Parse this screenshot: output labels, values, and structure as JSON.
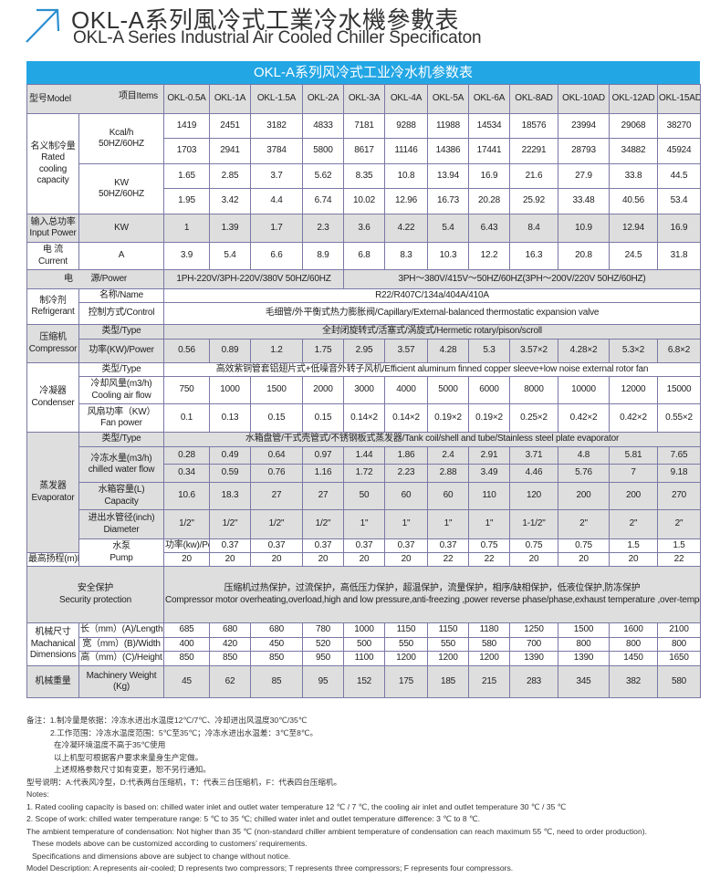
{
  "title_cn": "OKL-A系列風冷式工業冷水機參數表",
  "title_en": "OKL-A Series Industrial Air Cooled Chiller Specificaton",
  "table_title": "OKL-A系列风冷式工业冷水机参数表",
  "icon": "arrow-up-right-icon",
  "colors": {
    "accent": "#22a6e4",
    "grey_row": "#dedede",
    "border": "#7a78a4"
  },
  "header": {
    "model_label": "型号Model",
    "items_label": "项目Items",
    "models": [
      "OKL-0.5A",
      "OKL-1A",
      "OKL-1.5A",
      "OKL-2A",
      "OKL-3A",
      "OKL-4A",
      "OKL-5A",
      "OKL-6A",
      "OKL-8AD",
      "OKL-10AD",
      "OKL-12AD",
      "OKL-15AD"
    ]
  },
  "cooling": {
    "label_cn": "名义制冷量",
    "label_en": "Rated cooling capacity",
    "kcal_label": "Kcal/h",
    "kcal_sub": "50HZ/60HZ",
    "kcal_50": [
      "1419",
      "2451",
      "3182",
      "4833",
      "7181",
      "9288",
      "11988",
      "14534",
      "18576",
      "23994",
      "29068",
      "38270"
    ],
    "kcal_60": [
      "1703",
      "2941",
      "3784",
      "5800",
      "8617",
      "11146",
      "14386",
      "17441",
      "22291",
      "28793",
      "34882",
      "45924"
    ],
    "kw_label": "KW",
    "kw_sub": "50HZ/60HZ",
    "kw_50": [
      "1.65",
      "2.85",
      "3.7",
      "5.62",
      "8.35",
      "10.8",
      "13.94",
      "16.9",
      "21.6",
      "27.9",
      "33.8",
      "44.5"
    ],
    "kw_60": [
      "1.95",
      "3.42",
      "4.4",
      "6.74",
      "10.02",
      "12.96",
      "16.73",
      "20.28",
      "25.92",
      "33.48",
      "40.56",
      "53.4"
    ]
  },
  "input_power": {
    "label_cn": "输入总功率",
    "label_en": "Input Power",
    "unit": "KW",
    "values": [
      "1",
      "1.39",
      "1.7",
      "2.3",
      "3.6",
      "4.22",
      "5.4",
      "6.43",
      "8.4",
      "10.9",
      "12.94",
      "16.9"
    ]
  },
  "current": {
    "label_cn": "电 流",
    "label_en": "Current",
    "unit": "A",
    "values": [
      "3.9",
      "5.4",
      "6.6",
      "8.9",
      "6.8",
      "8.3",
      "10.3",
      "12.2",
      "16.3",
      "20.8",
      "24.5",
      "31.8"
    ]
  },
  "power": {
    "label": "电　　源/Power",
    "single": "1PH-220V/3PH-220V/380V 50HZ/60HZ",
    "three": "3PH～380V/415V～50HZ/60HZ(3PH～200V/220V   50HZ/60HZ)"
  },
  "refrigerant": {
    "label_cn": "制冷剂",
    "label_en": "Refrigerant",
    "name_label": "名称/Name",
    "name": "R22/R407C/134a/404A/410A",
    "control_label": "控制方式/Control",
    "control": "毛细管/外平衡式热力膨胀阀/Capillary/External-balanced thermostatic expansion valve"
  },
  "compressor": {
    "label_cn": "压缩机",
    "label_en": "Compressor",
    "type_label": "类型/Type",
    "type": "全封闭旋转式/活塞式/涡旋式/Hermetic rotary/pison/scroll",
    "power_label": "功率(KW)/Power",
    "power": [
      "0.56",
      "0.89",
      "1.2",
      "1.75",
      "2.95",
      "3.57",
      "4.28",
      "5.3",
      "3.57×2",
      "4.28×2",
      "5.3×2",
      "6.8×2"
    ]
  },
  "condenser": {
    "label_cn": "冷凝器",
    "label_en": "Condenser",
    "type_label": "类型/Type",
    "type": "高效紫铜管套铝翅片式+低噪音外转子风机/Efficient aluminum finned copper sleeve+low noise external rotor fan",
    "airflow_label_cn": "冷却风量(m3/h)",
    "airflow_label_en": "Cooling air flow",
    "airflow": [
      "750",
      "1000",
      "1500",
      "2000",
      "3000",
      "4000",
      "5000",
      "6000",
      "8000",
      "10000",
      "12000",
      "15000"
    ],
    "fan_label_cn": "风扇功率（KW）",
    "fan_label_en": "Fan power",
    "fan": [
      "0.1",
      "0.13",
      "0.15",
      "0.15",
      "0.14×2",
      "0.14×2",
      "0.19×2",
      "0.19×2",
      "0.25×2",
      "0.42×2",
      "0.42×2",
      "0.55×2"
    ]
  },
  "evaporator": {
    "label_cn": "蒸发器",
    "label_en": "Evaporator",
    "type_label": "类型/Type",
    "type": "水箱盘管/干式壳管式/不锈钢板式蒸发器/Tank coil/shell and tube/Stainless steel plate evaporator",
    "flow_label_cn": "冷冻水量(m3/h)",
    "flow_label_en": "chilled water flow",
    "flow_1": [
      "0.28",
      "0.49",
      "0.64",
      "0.97",
      "1.44",
      "1.86",
      "2.4",
      "2.91",
      "3.71",
      "4.8",
      "5.81",
      "7.65"
    ],
    "flow_2": [
      "0.34",
      "0.59",
      "0.76",
      "1.16",
      "1.72",
      "2.23",
      "2.88",
      "3.49",
      "4.46",
      "5.76",
      "7",
      "9.18"
    ],
    "capacity_label_cn": "水箱容量(L)",
    "capacity_label_en": "Capacity",
    "capacity": [
      "10.6",
      "18.3",
      "27",
      "27",
      "50",
      "60",
      "60",
      "110",
      "120",
      "200",
      "200",
      "270"
    ],
    "diameter_label_cn": "进出水管径(inch)",
    "diameter_label_en": "Diameter",
    "diameter": [
      "1/2\"",
      "1/2\"",
      "1/2\"",
      "1/2\"",
      "1\"",
      "1\"",
      "1\"",
      "1\"",
      "1-1/2\"",
      "2\"",
      "2\"",
      "2\""
    ]
  },
  "pump": {
    "label_cn": "水泵",
    "label_en": "Pump",
    "power_label": "功率(kw)/Power",
    "power": [
      "0.37",
      "0.37",
      "0.37",
      "0.37",
      "0.37",
      "0.37",
      "0.75",
      "0.75",
      "0.75",
      "1.5",
      "1.5",
      "2.2"
    ],
    "lift_label": "最高扬程(m)Max-lift",
    "lift": [
      "20",
      "20",
      "20",
      "20",
      "20",
      "20",
      "22",
      "22",
      "20",
      "20",
      "20",
      "22"
    ]
  },
  "security": {
    "label_cn": "安全保护",
    "label_en": "Security protection",
    "text_cn": "压缩机过热保护，过流保护，高低压力保护，超温保护，流量保护，相序/缺相保护，低液位保护,防冻保护",
    "text_en": "Compressor motor overheating,overload,high and low pressure,anti-freezing ,power reverse phase/phase,exhaust temperature ,over-temperature,flow switches"
  },
  "dimensions": {
    "label_cn": "机械尺寸",
    "label_en1": "Machanical",
    "label_en2": "Dimensions",
    "length_label": "长（mm）(A)/Length",
    "length": [
      "685",
      "680",
      "680",
      "780",
      "1000",
      "1150",
      "1150",
      "1180",
      "1250",
      "1500",
      "1600",
      "2100"
    ],
    "width_label": "宽（mm）(B)/Width",
    "width": [
      "400",
      "420",
      "450",
      "520",
      "500",
      "550",
      "550",
      "580",
      "700",
      "800",
      "800",
      "800"
    ],
    "height_label": "高（mm）(C)/Height",
    "height": [
      "850",
      "850",
      "850",
      "950",
      "1100",
      "1200",
      "1200",
      "1200",
      "1390",
      "1390",
      "1450",
      "1650"
    ]
  },
  "weight": {
    "label_cn": "机械重量",
    "label_en1": "Machinery Weight",
    "label_en2": "(Kg)",
    "values": [
      "45",
      "62",
      "85",
      "95",
      "152",
      "175",
      "185",
      "215",
      "283",
      "345",
      "382",
      "580"
    ]
  },
  "notes": [
    "备注：1.制冷量是依据：冷冻水进出水温度12℃/7℃、冷却进出风温度30℃/35℃",
    "2.工作范围：冷冻水温度范围：5℃至35℃；冷冻水进出水温差：3℃至8℃。",
    "在冷凝环境温度不高于35℃使用",
    "以上机型可根据客户要求来量身生产定做。",
    "上述规格参数尺寸如有变更，恕不另行通知。",
    "型号说明：A:代表风冷型，D:代表两台压缩机，T：代表三台压缩机，F：代表四台压缩机。",
    "Notes:",
    "1. Rated cooling capacity is based on: chilled water inlet and outlet water temperature 12 ℃ / 7 ℃, the cooling air inlet and outlet temperature 30 ℃ / 35 ℃",
    "2. Scope of work: chilled water temperature range: 5 ℃ to 35 ℃; chilled water inlet and outlet temperature difference: 3 ℃ to 8 ℃.",
    "The ambient temperature of condensation: Not higher than 35 ℃ (non-standard chiller ambient temperature of condensation can reach maximum 55 ℃, need to order production).",
    "These models above can be customized according to customers’  requirements.",
    "Specifications and dimensions above are subject to change without notice.",
    "Model Description: A represents air-cooled; D represents two compressors; T represents three compressors; F represents four compressors."
  ]
}
